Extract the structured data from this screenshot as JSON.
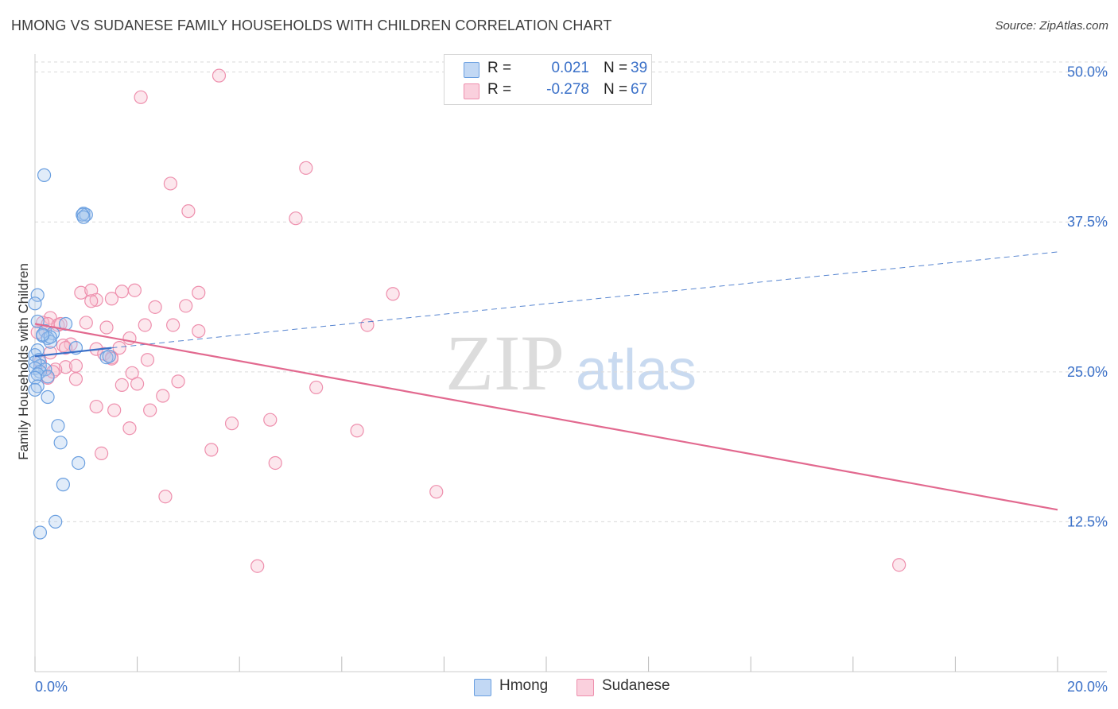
{
  "title": "HMONG VS SUDANESE FAMILY HOUSEHOLDS WITH CHILDREN CORRELATION CHART",
  "source": "Source: ZipAtlas.com",
  "watermark": {
    "zip": "ZIP",
    "atlas": "atlas"
  },
  "legend": {
    "rows": [
      {
        "r_label": "R =",
        "r_value": "0.021",
        "n_label": "N =",
        "n_value": "39",
        "color": "#a9c8ef"
      },
      {
        "r_label": "R =",
        "r_value": "-0.278",
        "n_label": "N =",
        "n_value": "67",
        "color": "#f6b9cc"
      }
    ]
  },
  "bottom_legend": [
    {
      "label": "Hmong",
      "color": "#a9c8ef"
    },
    {
      "label": "Sudanese",
      "color": "#f6b9cc"
    }
  ],
  "chart_data": {
    "type": "scatter",
    "title": "HMONG VS SUDANESE FAMILY HOUSEHOLDS WITH CHILDREN CORRELATION CHART",
    "xlabel": "",
    "ylabel": "Family Households with Children",
    "xlim": [
      0,
      20
    ],
    "ylim": [
      0,
      51.5
    ],
    "x_tick_labels": [
      "0.0%",
      "20.0%"
    ],
    "y_ticks": [
      12.5,
      25.0,
      37.5,
      50.0
    ],
    "y_tick_labels": [
      "12.5%",
      "25.0%",
      "37.5%",
      "50.0%"
    ],
    "grid": "horizontal dashed",
    "colors": {
      "hmong": "#6a9fe0",
      "sudanese": "#ee8fad",
      "hmong_line": "#3a70c8",
      "sudanese_line": "#e2698f",
      "axis_text": "#3a70c8"
    },
    "series": [
      {
        "name": "Hmong",
        "points": [
          [
            0.18,
            41.4
          ],
          [
            0.95,
            38.2
          ],
          [
            1.0,
            38.1
          ],
          [
            0.93,
            38.1
          ],
          [
            0.95,
            37.9
          ],
          [
            0.05,
            31.4
          ],
          [
            0.0,
            30.7
          ],
          [
            0.05,
            29.2
          ],
          [
            0.6,
            29.0
          ],
          [
            0.2,
            28.4
          ],
          [
            0.35,
            28.2
          ],
          [
            0.15,
            28.0
          ],
          [
            0.25,
            27.8
          ],
          [
            0.3,
            27.5
          ],
          [
            0.8,
            27.0
          ],
          [
            0.05,
            26.8
          ],
          [
            0.0,
            26.4
          ],
          [
            1.4,
            26.2
          ],
          [
            0.08,
            26.0
          ],
          [
            0.1,
            25.5
          ],
          [
            0.0,
            25.8
          ],
          [
            0.2,
            25.2
          ],
          [
            0.0,
            25.3
          ],
          [
            0.1,
            25.0
          ],
          [
            0.05,
            24.8
          ],
          [
            0.25,
            24.6
          ],
          [
            0.0,
            24.5
          ],
          [
            0.05,
            23.8
          ],
          [
            0.0,
            23.5
          ],
          [
            0.25,
            22.9
          ],
          [
            0.45,
            20.5
          ],
          [
            0.5,
            19.1
          ],
          [
            0.85,
            17.4
          ],
          [
            0.55,
            15.6
          ],
          [
            0.4,
            12.5
          ],
          [
            0.1,
            11.6
          ],
          [
            1.45,
            26.3
          ],
          [
            0.3,
            27.9
          ],
          [
            0.15,
            28.1
          ]
        ]
      },
      {
        "name": "Sudanese",
        "points": [
          [
            3.6,
            49.7
          ],
          [
            2.07,
            47.9
          ],
          [
            5.3,
            42.0
          ],
          [
            2.65,
            40.7
          ],
          [
            3.0,
            38.4
          ],
          [
            5.1,
            37.8
          ],
          [
            0.9,
            31.6
          ],
          [
            1.1,
            31.8
          ],
          [
            1.7,
            31.7
          ],
          [
            1.95,
            31.8
          ],
          [
            3.2,
            31.6
          ],
          [
            7.0,
            31.5
          ],
          [
            1.2,
            31.0
          ],
          [
            1.5,
            31.1
          ],
          [
            1.1,
            30.9
          ],
          [
            2.35,
            30.4
          ],
          [
            2.95,
            30.5
          ],
          [
            0.3,
            29.5
          ],
          [
            0.15,
            29.1
          ],
          [
            0.25,
            29.0
          ],
          [
            0.45,
            28.9
          ],
          [
            2.15,
            28.9
          ],
          [
            2.7,
            28.9
          ],
          [
            1.4,
            28.7
          ],
          [
            3.2,
            28.4
          ],
          [
            6.5,
            28.9
          ],
          [
            1.85,
            27.8
          ],
          [
            0.7,
            27.3
          ],
          [
            0.55,
            27.2
          ],
          [
            0.6,
            27.0
          ],
          [
            1.65,
            27.0
          ],
          [
            1.2,
            26.9
          ],
          [
            1.35,
            26.5
          ],
          [
            0.3,
            26.6
          ],
          [
            1.5,
            26.2
          ],
          [
            1.5,
            26.1
          ],
          [
            2.2,
            26.0
          ],
          [
            0.1,
            25.8
          ],
          [
            0.6,
            25.4
          ],
          [
            0.8,
            25.5
          ],
          [
            0.4,
            25.2
          ],
          [
            0.25,
            24.5
          ],
          [
            0.8,
            24.4
          ],
          [
            1.9,
            24.9
          ],
          [
            2.0,
            24.0
          ],
          [
            1.7,
            23.9
          ],
          [
            2.8,
            24.2
          ],
          [
            5.5,
            23.7
          ],
          [
            2.5,
            23.0
          ],
          [
            1.2,
            22.1
          ],
          [
            1.55,
            21.8
          ],
          [
            2.25,
            21.8
          ],
          [
            3.85,
            20.7
          ],
          [
            4.6,
            21.0
          ],
          [
            1.85,
            20.3
          ],
          [
            6.3,
            20.1
          ],
          [
            3.45,
            18.5
          ],
          [
            1.3,
            18.2
          ],
          [
            4.7,
            17.4
          ],
          [
            7.85,
            15.0
          ],
          [
            2.55,
            14.6
          ],
          [
            4.35,
            8.8
          ],
          [
            16.9,
            8.9
          ],
          [
            0.5,
            29.0
          ],
          [
            1.0,
            29.1
          ],
          [
            0.05,
            28.3
          ],
          [
            0.35,
            25.0
          ]
        ]
      }
    ],
    "trendlines": [
      {
        "name": "Hmong",
        "x": [
          0,
          1.5
        ],
        "y": [
          26.3,
          27.0
        ],
        "dashed_to": [
          20,
          35.0
        ]
      },
      {
        "name": "Sudanese",
        "x": [
          0,
          20
        ],
        "y": [
          29.0,
          13.5
        ]
      }
    ]
  }
}
